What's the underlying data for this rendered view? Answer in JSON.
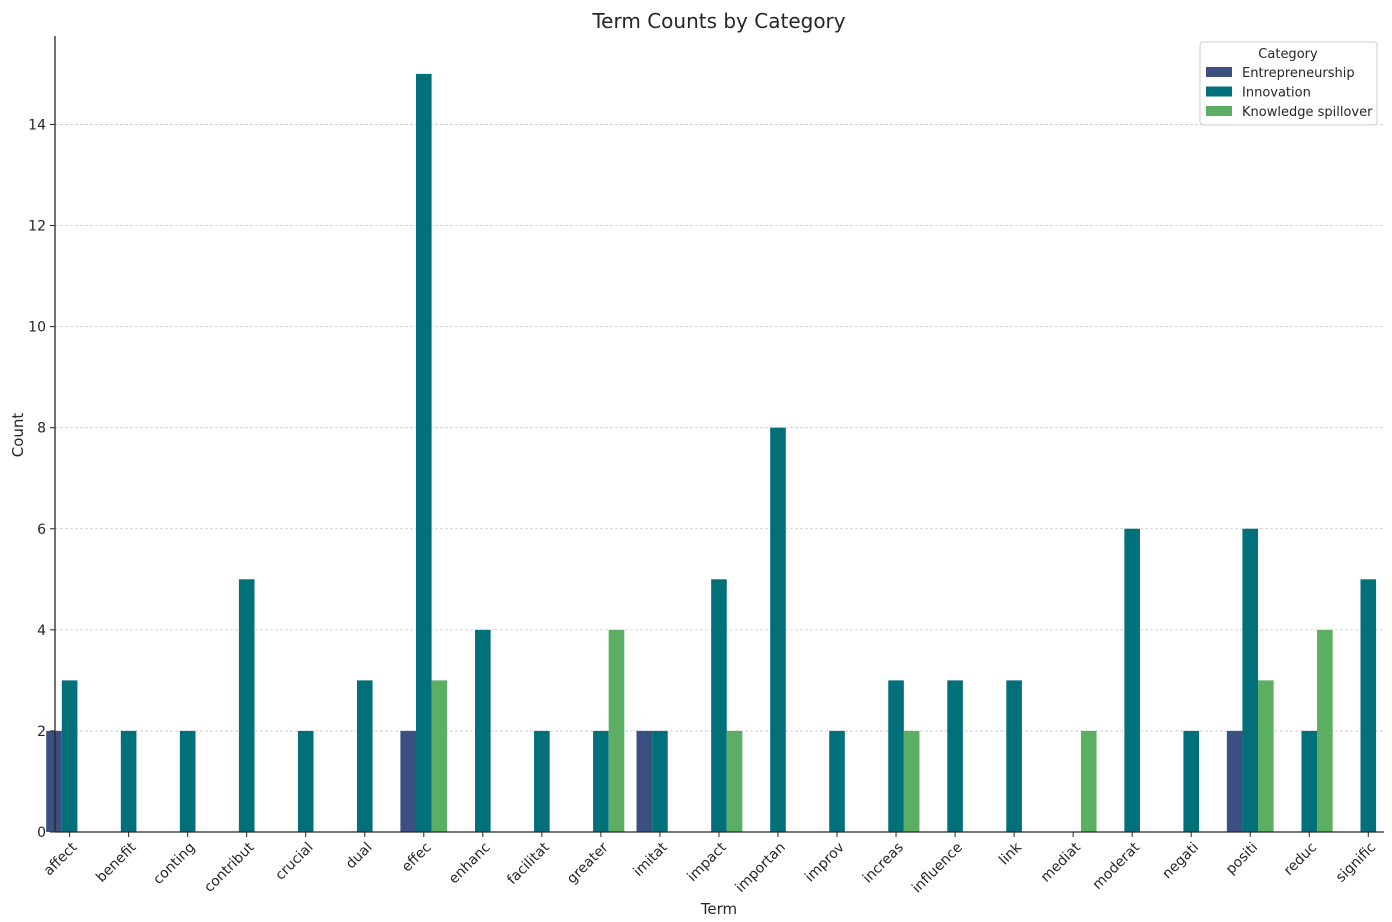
{
  "chart_data": {
    "type": "bar",
    "title": "Term Counts by Category",
    "xlabel": "Term",
    "ylabel": "Count",
    "ylim": [
      0,
      15.75
    ],
    "yticks": [
      0,
      2,
      4,
      6,
      8,
      10,
      12,
      14
    ],
    "grid": "horizontal dashed",
    "legend": {
      "title": "Category",
      "placement": "top-right"
    },
    "categories": [
      "affect",
      "benefit",
      "conting",
      "contribut",
      "crucial",
      "dual",
      "effec",
      "enhanc",
      "facilitat",
      "greater",
      "imitat",
      "impact",
      "importan",
      "improv",
      "increas",
      "influence",
      "link",
      "mediat",
      "moderat",
      "negati",
      "positi",
      "reduc",
      "signific"
    ],
    "series": [
      {
        "name": "Entrepreneurship",
        "color": "#3b4f80",
        "values": [
          2,
          0,
          0,
          0,
          0,
          0,
          2,
          0,
          0,
          0,
          2,
          0,
          0,
          0,
          0,
          0,
          0,
          0,
          0,
          0,
          2,
          0,
          0
        ]
      },
      {
        "name": "Innovation",
        "color": "#02707a",
        "values": [
          3,
          2,
          2,
          5,
          2,
          3,
          15,
          4,
          2,
          2,
          2,
          5,
          8,
          2,
          3,
          3,
          3,
          0,
          6,
          2,
          6,
          2,
          5
        ]
      },
      {
        "name": "Knowledge spillover",
        "color": "#5cae63",
        "values": [
          0,
          0,
          0,
          0,
          0,
          0,
          3,
          0,
          0,
          4,
          0,
          2,
          0,
          0,
          2,
          0,
          0,
          2,
          0,
          0,
          3,
          4,
          0
        ]
      }
    ]
  }
}
